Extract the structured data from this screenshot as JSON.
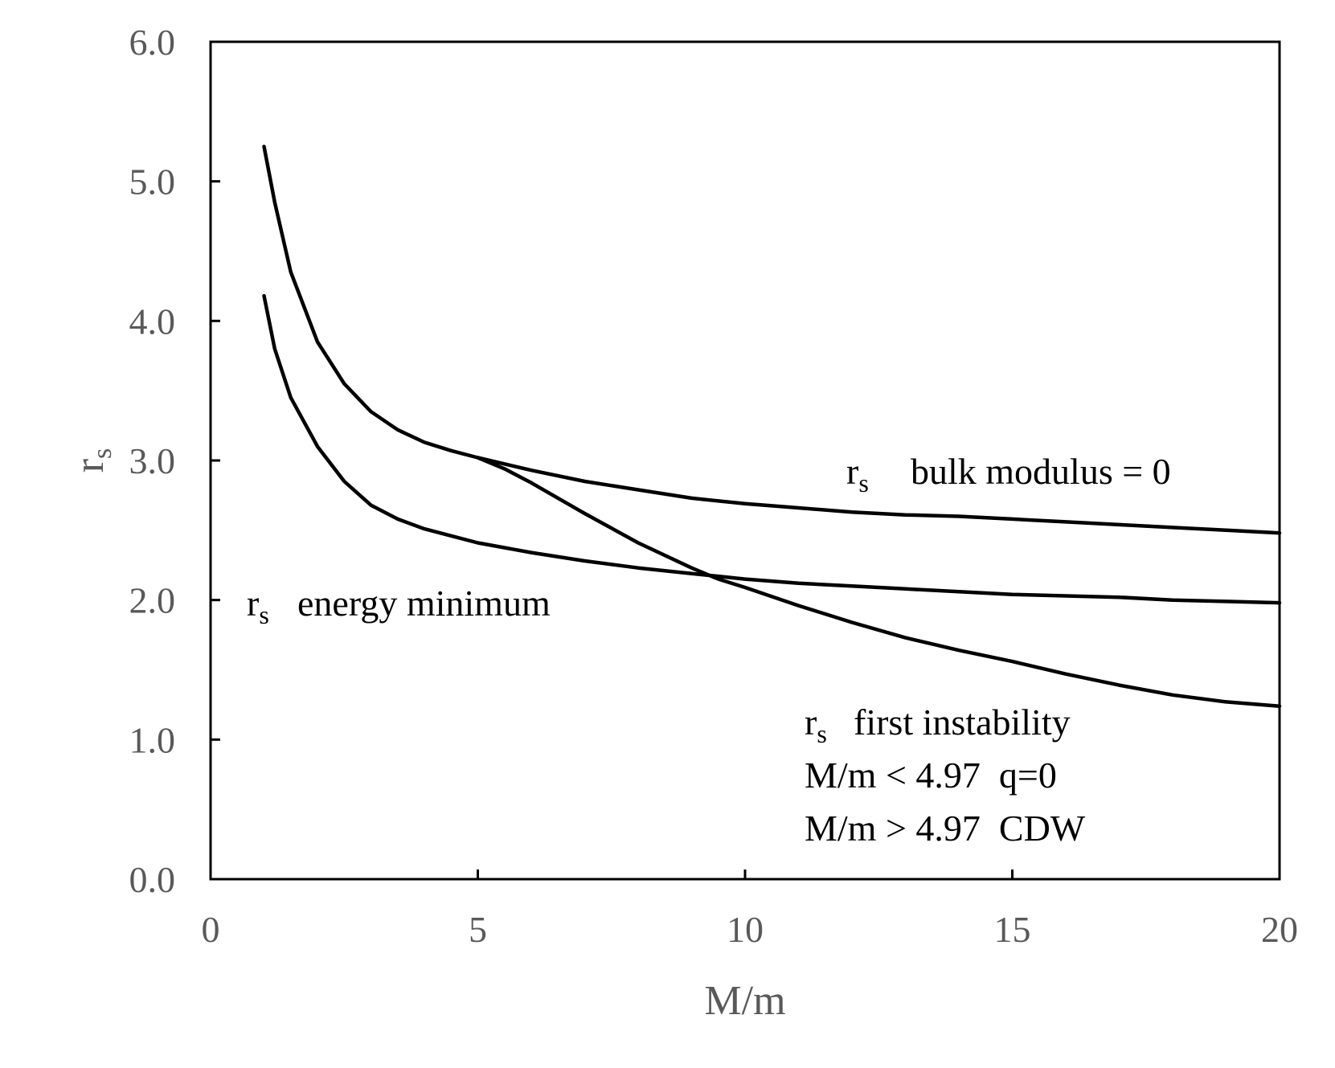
{
  "chart_data": {
    "type": "line",
    "title": "",
    "xlabel": "M/m",
    "ylabel_main": "r",
    "ylabel_sub": "s",
    "xlim": [
      0,
      20
    ],
    "ylim": [
      0,
      6
    ],
    "xticks": [
      0,
      5,
      10,
      15,
      20
    ],
    "xtick_labels": [
      "0",
      "5",
      "10",
      "15",
      "20"
    ],
    "yticks": [
      0,
      1,
      2,
      3,
      4,
      5,
      6
    ],
    "ytick_labels": [
      "0.0",
      "1.0",
      "2.0",
      "3.0",
      "4.0",
      "5.0",
      "6.0"
    ],
    "grid": false,
    "series": [
      {
        "name": "rs bulk modulus = 0",
        "x": [
          1,
          1.2,
          1.5,
          2,
          2.5,
          3,
          3.5,
          4,
          4.5,
          5,
          6,
          7,
          8,
          9,
          10,
          11,
          12,
          13,
          14,
          15,
          16,
          17,
          18,
          19,
          20
        ],
        "y": [
          5.25,
          4.85,
          4.35,
          3.85,
          3.55,
          3.35,
          3.22,
          3.13,
          3.07,
          3.02,
          2.93,
          2.85,
          2.79,
          2.73,
          2.69,
          2.66,
          2.63,
          2.61,
          2.6,
          2.58,
          2.56,
          2.54,
          2.52,
          2.5,
          2.48
        ]
      },
      {
        "name": "rs energy minimum",
        "x": [
          1,
          1.2,
          1.5,
          2,
          2.5,
          3,
          3.5,
          4,
          4.5,
          5,
          6,
          7,
          8,
          9,
          9.5,
          10,
          11,
          12,
          13,
          14,
          15,
          16,
          17,
          18,
          19,
          20
        ],
        "y": [
          4.18,
          3.8,
          3.45,
          3.1,
          2.85,
          2.68,
          2.58,
          2.51,
          2.46,
          2.41,
          2.34,
          2.28,
          2.23,
          2.19,
          2.17,
          2.15,
          2.12,
          2.1,
          2.08,
          2.06,
          2.04,
          2.03,
          2.02,
          2.0,
          1.99,
          1.98
        ]
      },
      {
        "name": "rs first instability",
        "x": [
          5,
          5.5,
          6,
          7,
          8,
          9,
          9.5,
          10,
          11,
          12,
          13,
          14,
          15,
          16,
          17,
          18,
          19,
          20
        ],
        "y": [
          3.02,
          2.94,
          2.84,
          2.62,
          2.41,
          2.23,
          2.15,
          2.09,
          1.96,
          1.84,
          1.73,
          1.64,
          1.56,
          1.47,
          1.39,
          1.32,
          1.27,
          1.24
        ]
      }
    ],
    "annotations": {
      "bulk": {
        "main": "r",
        "sub": "s",
        "text": "bulk modulus = 0"
      },
      "energy": {
        "main": "r",
        "sub": "s",
        "text": "energy minimum"
      },
      "instability": {
        "main": "r",
        "sub": "s",
        "text": "first instability",
        "line2": "M/m < 4.97  q=0",
        "line3": "M/m > 4.97  CDW"
      }
    }
  }
}
